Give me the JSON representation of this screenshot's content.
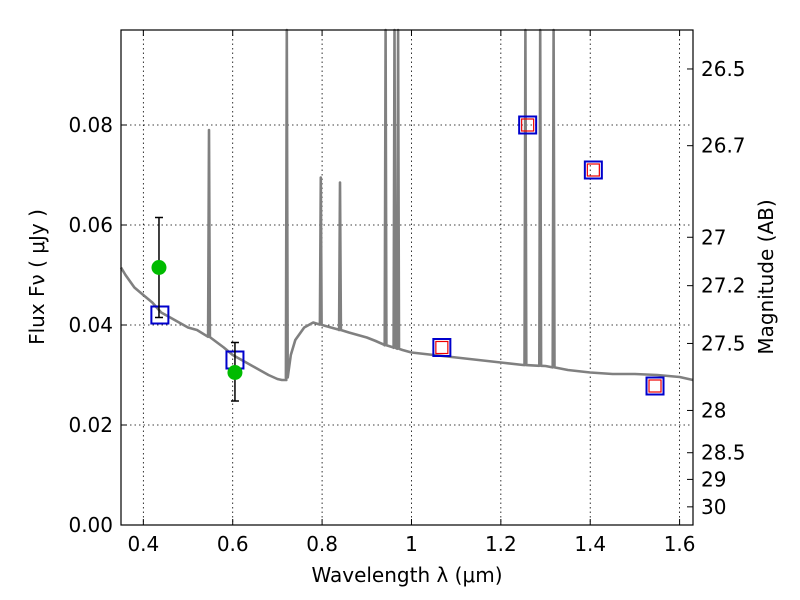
{
  "chart_data": {
    "type": "scatter",
    "xlabel": "Wavelength  λ (μm)",
    "ylabel": "Flux  Fν  ( μJy )",
    "y2label": "Magnitude (AB)",
    "xlim": [
      0.35,
      1.63
    ],
    "ylim": [
      0.0,
      0.099
    ],
    "grid": true,
    "x_ticks": [
      "0.4",
      "0.6",
      "0.8",
      "1",
      "1.2",
      "1.4",
      "1.6"
    ],
    "x_tick_values": [
      0.4,
      0.6,
      0.8,
      1.0,
      1.2,
      1.4,
      1.6
    ],
    "y_ticks": [
      "0.00",
      "0.02",
      "0.04",
      "0.06",
      "0.08"
    ],
    "y_tick_values": [
      0.0,
      0.02,
      0.04,
      0.06,
      0.08
    ],
    "y2_ticks": [
      "26.5",
      "26.7",
      "27",
      "27.2",
      "27.5",
      "28",
      "28.5",
      "29",
      "30"
    ],
    "y2_tick_values": [
      26.5,
      26.7,
      27.0,
      27.2,
      27.5,
      28.0,
      28.5,
      29.0,
      30.0
    ],
    "colors": {
      "spectrum": "#808080",
      "observed": "#00bb00",
      "model_square": "#0000cc",
      "inner_square": "#ee0000",
      "errorbar": "#000000"
    },
    "spectrum": {
      "continuum": [
        [
          0.35,
          0.0515
        ],
        [
          0.36,
          0.05
        ],
        [
          0.38,
          0.0475
        ],
        [
          0.4,
          0.046
        ],
        [
          0.42,
          0.0445
        ],
        [
          0.44,
          0.0425
        ],
        [
          0.46,
          0.0415
        ],
        [
          0.48,
          0.0405
        ],
        [
          0.5,
          0.0395
        ],
        [
          0.52,
          0.039
        ],
        [
          0.55,
          0.0375
        ],
        [
          0.58,
          0.0355
        ],
        [
          0.6,
          0.034
        ],
        [
          0.62,
          0.033
        ],
        [
          0.65,
          0.0315
        ],
        [
          0.68,
          0.03
        ],
        [
          0.7,
          0.0292
        ],
        [
          0.71,
          0.029
        ],
        [
          0.72,
          0.029
        ],
        [
          0.73,
          0.034
        ],
        [
          0.74,
          0.037
        ],
        [
          0.76,
          0.0395
        ],
        [
          0.78,
          0.0405
        ],
        [
          0.8,
          0.04
        ],
        [
          0.82,
          0.0395
        ],
        [
          0.84,
          0.039
        ],
        [
          0.86,
          0.0385
        ],
        [
          0.88,
          0.038
        ],
        [
          0.9,
          0.0375
        ],
        [
          0.92,
          0.0368
        ],
        [
          0.94,
          0.036
        ],
        [
          0.96,
          0.0355
        ],
        [
          0.98,
          0.035
        ],
        [
          1.0,
          0.0345
        ],
        [
          1.05,
          0.034
        ],
        [
          1.1,
          0.0335
        ],
        [
          1.15,
          0.033
        ],
        [
          1.2,
          0.0325
        ],
        [
          1.25,
          0.032
        ],
        [
          1.3,
          0.0318
        ],
        [
          1.35,
          0.031
        ],
        [
          1.4,
          0.0305
        ],
        [
          1.45,
          0.0302
        ],
        [
          1.5,
          0.0302
        ],
        [
          1.55,
          0.03
        ],
        [
          1.6,
          0.0296
        ],
        [
          1.63,
          0.029
        ]
      ],
      "emission_lines": [
        [
          0.547,
          0.079
        ],
        [
          0.721,
          0.099
        ],
        [
          0.797,
          0.0695
        ],
        [
          0.84,
          0.0685
        ],
        [
          0.942,
          0.099
        ],
        [
          0.962,
          0.099
        ],
        [
          0.97,
          0.099
        ],
        [
          1.255,
          0.099
        ],
        [
          1.288,
          0.099
        ],
        [
          1.318,
          0.099
        ]
      ]
    },
    "observed": [
      {
        "x": 0.435,
        "y": 0.0515,
        "yerr_low": 0.0415,
        "yerr_high": 0.0615
      },
      {
        "x": 0.605,
        "y": 0.0305,
        "yerr_low": 0.0248,
        "yerr_high": 0.0365
      }
    ],
    "model_photometry": [
      {
        "x": 0.437,
        "y": 0.042,
        "inner": false
      },
      {
        "x": 0.605,
        "y": 0.033,
        "inner": false
      },
      {
        "x": 1.068,
        "y": 0.0355,
        "inner": true
      },
      {
        "x": 1.26,
        "y": 0.08,
        "inner": true
      },
      {
        "x": 1.407,
        "y": 0.071,
        "inner": true
      },
      {
        "x": 1.545,
        "y": 0.0278,
        "inner": true
      }
    ]
  }
}
